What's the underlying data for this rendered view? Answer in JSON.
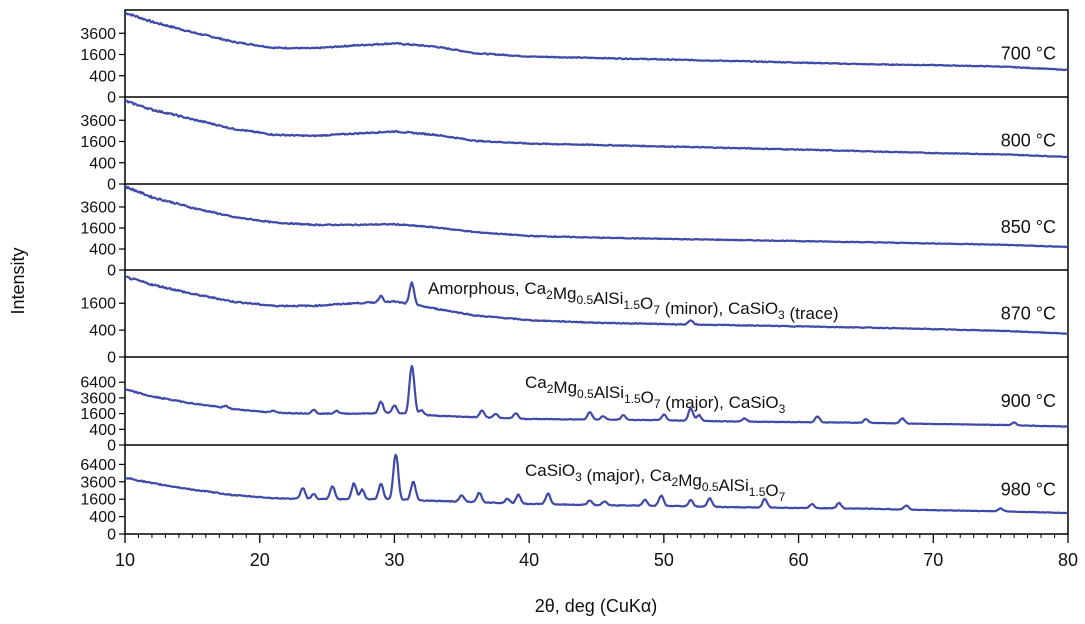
{
  "chart_data": {
    "type": "line",
    "xlabel": "2θ, deg (CuKα)",
    "ylabel": "Intensity",
    "xlim": [
      10,
      80
    ],
    "x_ticks": [
      10,
      20,
      30,
      40,
      50,
      60,
      70,
      80
    ],
    "y_scale": "sqrt",
    "panels": [
      {
        "name": "700 °C",
        "y_ticks": [
          0,
          400,
          1600,
          3600
        ],
        "ylim": [
          0,
          6400
        ],
        "series": [
          {
            "baseline": [
              [
                10,
                6300
              ],
              [
                12,
                5000
              ],
              [
                15,
                3700
              ],
              [
                18,
                2700
              ],
              [
                21,
                2150
              ],
              [
                24,
                2100
              ],
              [
                27,
                2350
              ],
              [
                30,
                2550
              ],
              [
                33,
                2250
              ],
              [
                36,
                1700
              ],
              [
                40,
                1450
              ],
              [
                45,
                1350
              ],
              [
                50,
                1250
              ],
              [
                55,
                1150
              ],
              [
                60,
                1050
              ],
              [
                65,
                950
              ],
              [
                70,
                900
              ],
              [
                75,
                820
              ],
              [
                80,
                650
              ]
            ],
            "peaks": []
          }
        ]
      },
      {
        "name": "800 °C",
        "y_ticks": [
          0,
          400,
          1600,
          3600
        ],
        "ylim": [
          0,
          6400
        ],
        "series": [
          {
            "baseline": [
              [
                10,
                6100
              ],
              [
                12,
                4900
              ],
              [
                15,
                3700
              ],
              [
                18,
                2700
              ],
              [
                21,
                2150
              ],
              [
                24,
                2050
              ],
              [
                27,
                2250
              ],
              [
                30,
                2450
              ],
              [
                33,
                2150
              ],
              [
                36,
                1650
              ],
              [
                40,
                1450
              ],
              [
                45,
                1350
              ],
              [
                50,
                1250
              ],
              [
                55,
                1150
              ],
              [
                60,
                1050
              ],
              [
                65,
                950
              ],
              [
                70,
                850
              ],
              [
                75,
                780
              ],
              [
                80,
                650
              ]
            ],
            "peaks": []
          }
        ]
      },
      {
        "name": "850 °C",
        "y_ticks": [
          0,
          400,
          1600,
          3600
        ],
        "ylim": [
          0,
          6400
        ],
        "series": [
          {
            "baseline": [
              [
                10,
                6300
              ],
              [
                12,
                4800
              ],
              [
                15,
                3500
              ],
              [
                18,
                2550
              ],
              [
                21,
                2050
              ],
              [
                24,
                1850
              ],
              [
                27,
                1850
              ],
              [
                30,
                1900
              ],
              [
                33,
                1650
              ],
              [
                36,
                1300
              ],
              [
                40,
                1050
              ],
              [
                45,
                950
              ],
              [
                50,
                880
              ],
              [
                55,
                820
              ],
              [
                60,
                760
              ],
              [
                65,
                700
              ],
              [
                70,
                640
              ],
              [
                75,
                580
              ],
              [
                80,
                480
              ]
            ],
            "peaks": []
          }
        ]
      },
      {
        "name": "870 °C",
        "annotation": {
          "parts": [
            {
              "t": "Amorphous, Ca"
            },
            {
              "t": "2",
              "sub": true
            },
            {
              "t": "Mg"
            },
            {
              "t": "0.5",
              "sub": true
            },
            {
              "t": "AlSi"
            },
            {
              "t": "1.5",
              "sub": true
            },
            {
              "t": "O"
            },
            {
              "t": "7",
              "sub": true
            },
            {
              "t": " (minor), CaSiO"
            },
            {
              "t": "3",
              "sub": true
            },
            {
              "t": " (trace)"
            }
          ]
        },
        "y_ticks": [
          0,
          400,
          1600
        ],
        "ylim": [
          0,
          4000
        ],
        "series": [
          {
            "baseline": [
              [
                10,
                3550
              ],
              [
                12,
                2900
              ],
              [
                15,
                2200
              ],
              [
                18,
                1700
              ],
              [
                21,
                1450
              ],
              [
                24,
                1450
              ],
              [
                27,
                1600
              ],
              [
                30,
                1700
              ],
              [
                33,
                1300
              ],
              [
                36,
                950
              ],
              [
                40,
                750
              ],
              [
                45,
                650
              ],
              [
                50,
                600
              ],
              [
                55,
                560
              ],
              [
                60,
                520
              ],
              [
                65,
                480
              ],
              [
                70,
                430
              ],
              [
                75,
                380
              ],
              [
                80,
                300
              ]
            ],
            "peaks": [
              [
                29,
                400
              ],
              [
                31.3,
                1500
              ],
              [
                52,
                150
              ]
            ]
          }
        ]
      },
      {
        "name": "900 °C",
        "annotation": {
          "parts": [
            {
              "t": "Ca"
            },
            {
              "t": "2",
              "sub": true
            },
            {
              "t": "Mg"
            },
            {
              "t": "0.5",
              "sub": true
            },
            {
              "t": "AlSi"
            },
            {
              "t": "1.5",
              "sub": true
            },
            {
              "t": "O"
            },
            {
              "t": "7",
              "sub": true
            },
            {
              "t": " (major), CaSiO"
            },
            {
              "t": "3",
              "sub": true
            }
          ]
        },
        "y_ticks": [
          0,
          400,
          1600,
          3600,
          6400
        ],
        "ylim": [
          0,
          12000
        ],
        "series": [
          {
            "baseline": [
              [
                10,
                5000
              ],
              [
                12,
                3800
              ],
              [
                15,
                2800
              ],
              [
                18,
                2100
              ],
              [
                21,
                1700
              ],
              [
                24,
                1600
              ],
              [
                27,
                1600
              ],
              [
                30,
                1650
              ],
              [
                33,
                1400
              ],
              [
                36,
                1250
              ],
              [
                40,
                1100
              ],
              [
                45,
                1050
              ],
              [
                50,
                1000
              ],
              [
                55,
                900
              ],
              [
                60,
                850
              ],
              [
                65,
                800
              ],
              [
                70,
                720
              ],
              [
                75,
                650
              ],
              [
                80,
                550
              ]
            ],
            "peaks": [
              [
                17.5,
                250
              ],
              [
                21,
                200
              ],
              [
                24,
                400
              ],
              [
                25.7,
                300
              ],
              [
                29,
                1400
              ],
              [
                30,
                900
              ],
              [
                31.3,
                8500
              ],
              [
                32,
                500
              ],
              [
                36.5,
                700
              ],
              [
                37.5,
                400
              ],
              [
                39,
                500
              ],
              [
                44.5,
                700
              ],
              [
                45.5,
                300
              ],
              [
                47,
                400
              ],
              [
                50,
                500
              ],
              [
                52,
                1200
              ],
              [
                52.6,
                500
              ],
              [
                56,
                250
              ],
              [
                61.4,
                500
              ],
              [
                65,
                300
              ],
              [
                67.7,
                400
              ],
              [
                76,
                200
              ]
            ]
          }
        ]
      },
      {
        "name": "980 °C",
        "annotation": {
          "parts": [
            {
              "t": "CaSiO"
            },
            {
              "t": "3",
              "sub": true
            },
            {
              "t": " (major), Ca"
            },
            {
              "t": "2",
              "sub": true
            },
            {
              "t": "Mg"
            },
            {
              "t": "0.5",
              "sub": true
            },
            {
              "t": "AlSi"
            },
            {
              "t": "1.5",
              "sub": true
            },
            {
              "t": "O"
            },
            {
              "t": "7",
              "sub": true
            }
          ]
        },
        "y_ticks": [
          0,
          400,
          1600,
          3600,
          6400
        ],
        "ylim": [
          0,
          10000
        ],
        "series": [
          {
            "baseline": [
              [
                10,
                4200
              ],
              [
                12,
                3400
              ],
              [
                15,
                2600
              ],
              [
                18,
                2000
              ],
              [
                21,
                1700
              ],
              [
                24,
                1600
              ],
              [
                27,
                1600
              ],
              [
                30,
                1600
              ],
              [
                33,
                1450
              ],
              [
                36,
                1350
              ],
              [
                40,
                1200
              ],
              [
                45,
                1100
              ],
              [
                50,
                1050
              ],
              [
                55,
                950
              ],
              [
                60,
                900
              ],
              [
                65,
                850
              ],
              [
                70,
                750
              ],
              [
                75,
                680
              ],
              [
                80,
                580
              ]
            ],
            "peaks": [
              [
                23.2,
                1200
              ],
              [
                24,
                500
              ],
              [
                25.4,
                1400
              ],
              [
                27,
                1800
              ],
              [
                27.6,
                1000
              ],
              [
                29,
                1700
              ],
              [
                30.1,
                6800
              ],
              [
                31.4,
                2100
              ],
              [
                35,
                600
              ],
              [
                36.3,
                900
              ],
              [
                38.4,
                400
              ],
              [
                39.2,
                800
              ],
              [
                41.4,
                1000
              ],
              [
                44.5,
                400
              ],
              [
                45.6,
                300
              ],
              [
                48.6,
                500
              ],
              [
                49.8,
                900
              ],
              [
                52,
                500
              ],
              [
                53.4,
                700
              ],
              [
                57.5,
                700
              ],
              [
                61,
                300
              ],
              [
                63,
                400
              ],
              [
                68,
                300
              ],
              [
                75,
                200
              ]
            ]
          }
        ]
      }
    ]
  }
}
